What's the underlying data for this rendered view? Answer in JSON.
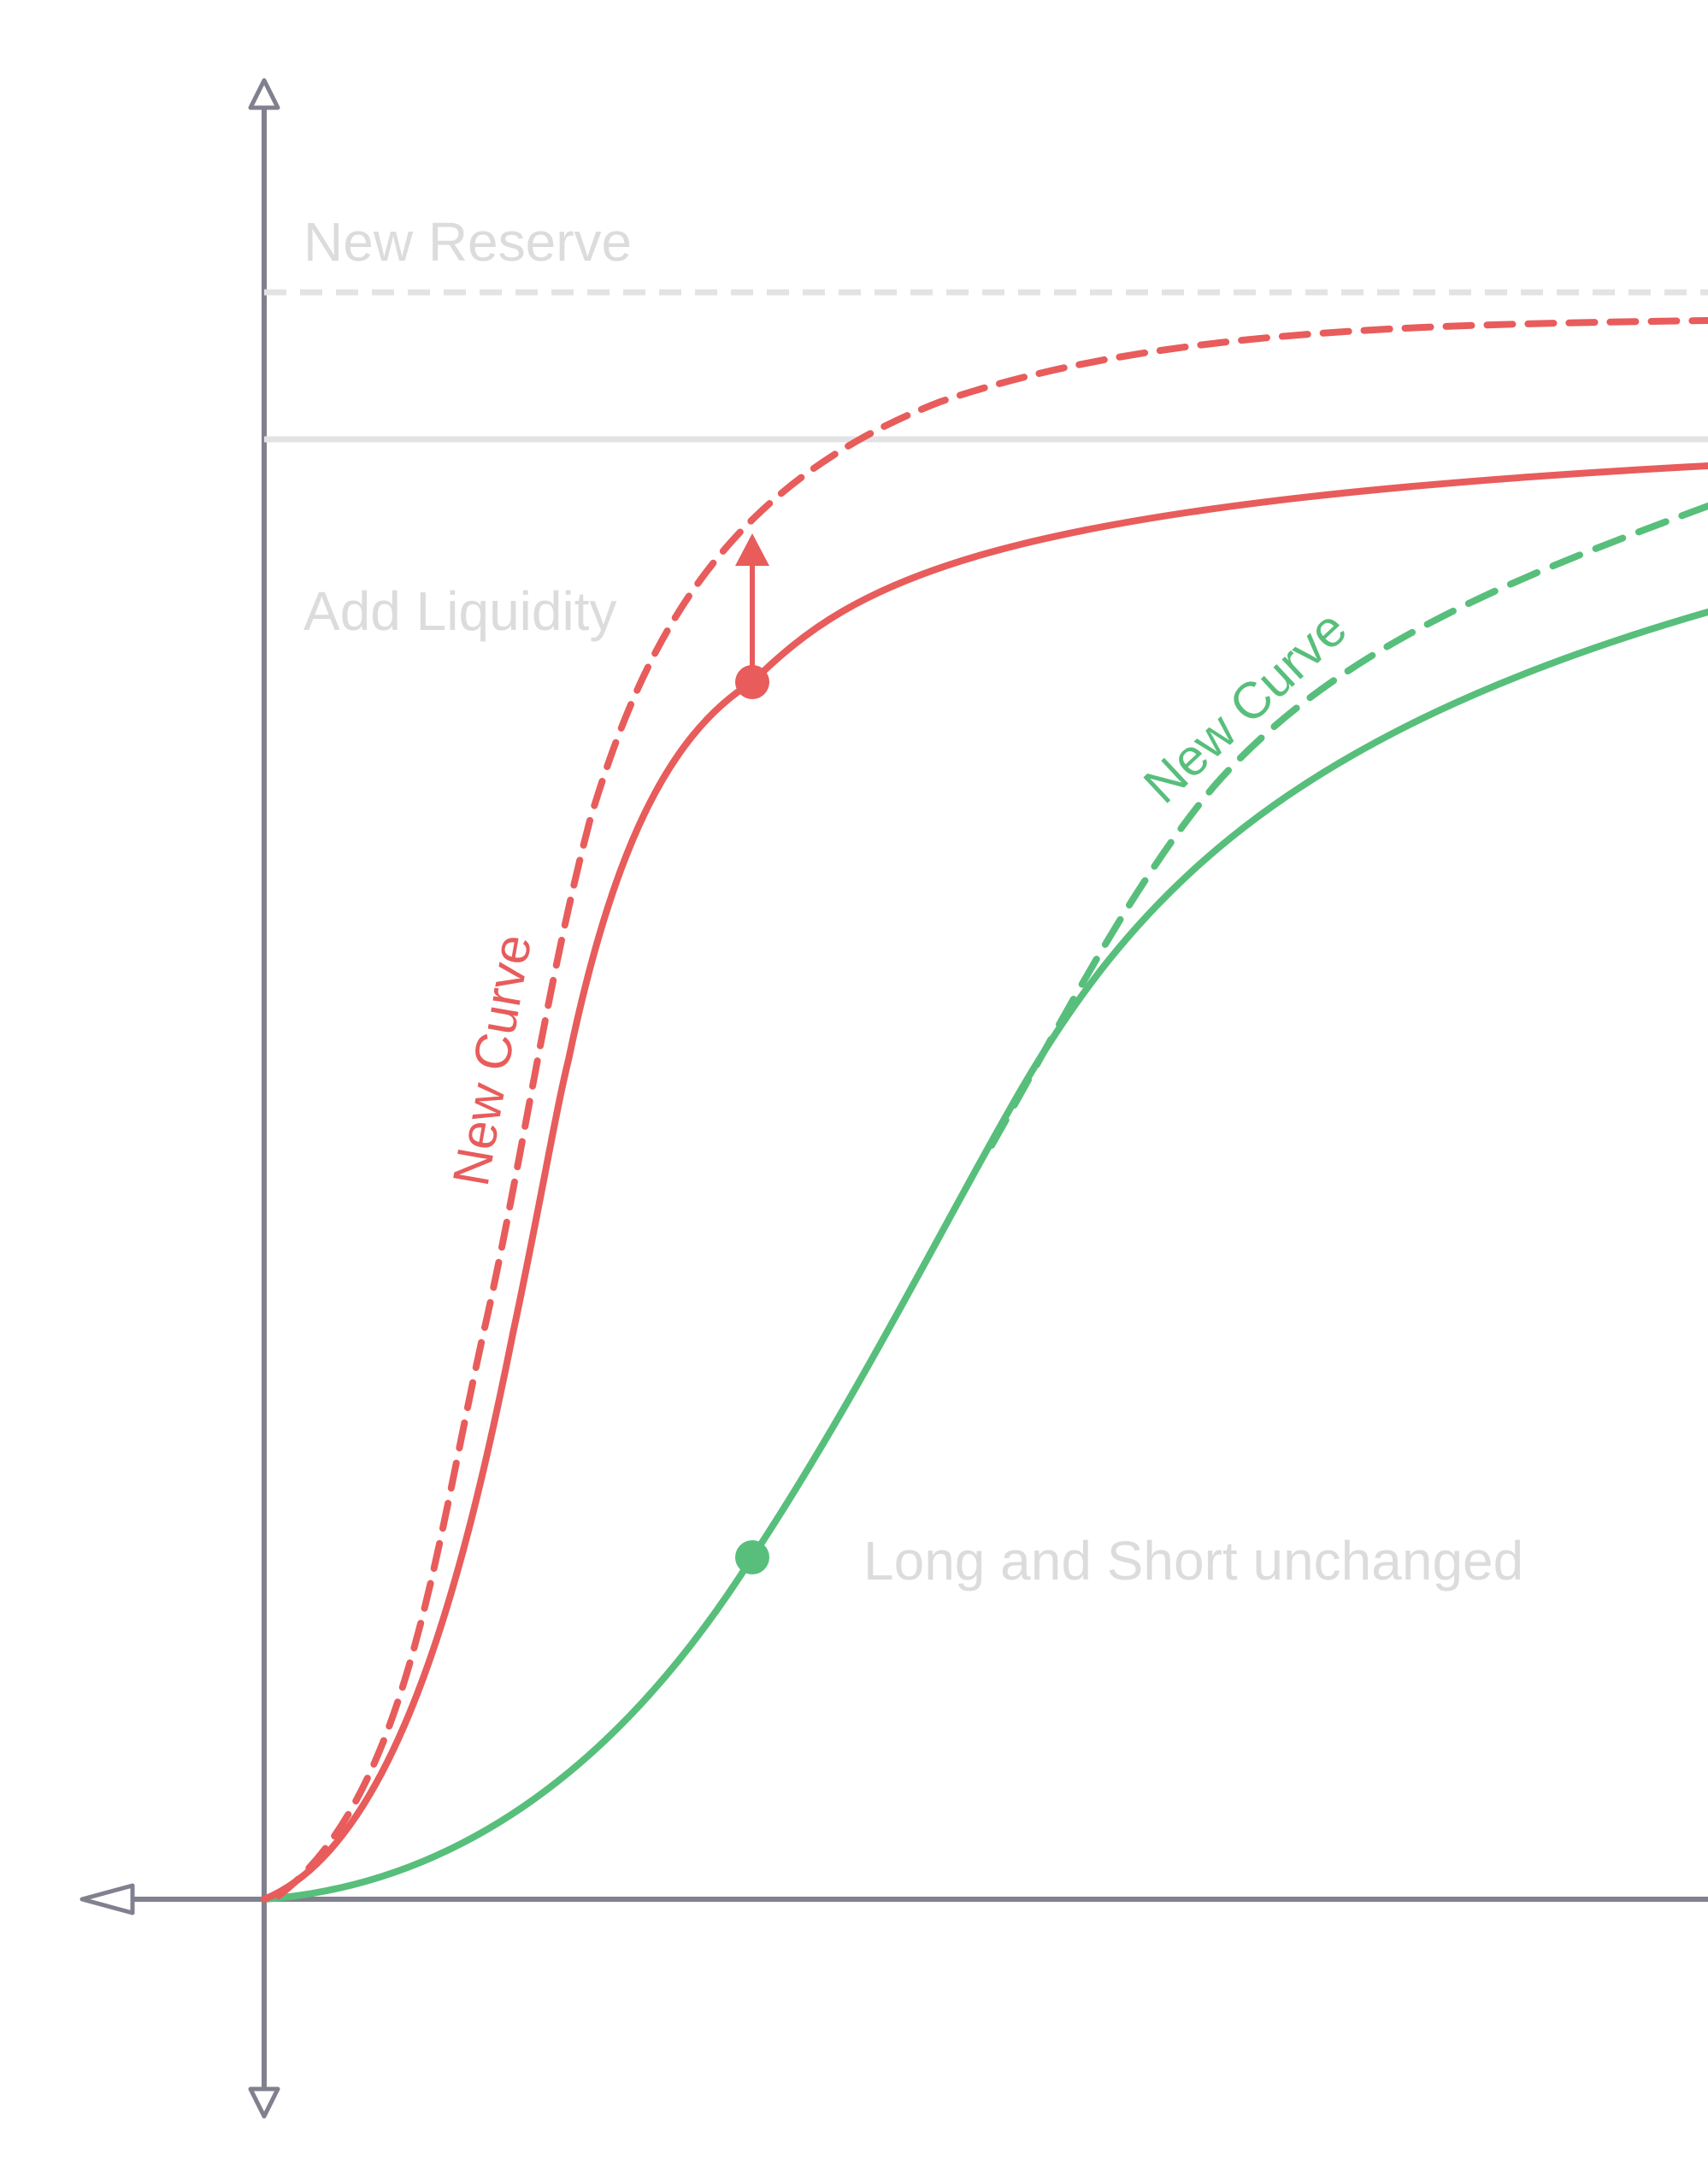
{
  "labels": {
    "new_reserve": "New Reserve",
    "add_liquidity": "Add Liquidity",
    "long_short_unchanged": "Long and Short unchanged",
    "red_new_curve": "New Curve",
    "green_new_curve": "New Curve"
  },
  "colors": {
    "axis": "#80808f",
    "red": "#e85c5c",
    "green": "#57bf7b",
    "guide": "#e3e3e3",
    "muted_text": "#dcdcdc",
    "background": "#ffffff"
  }
}
